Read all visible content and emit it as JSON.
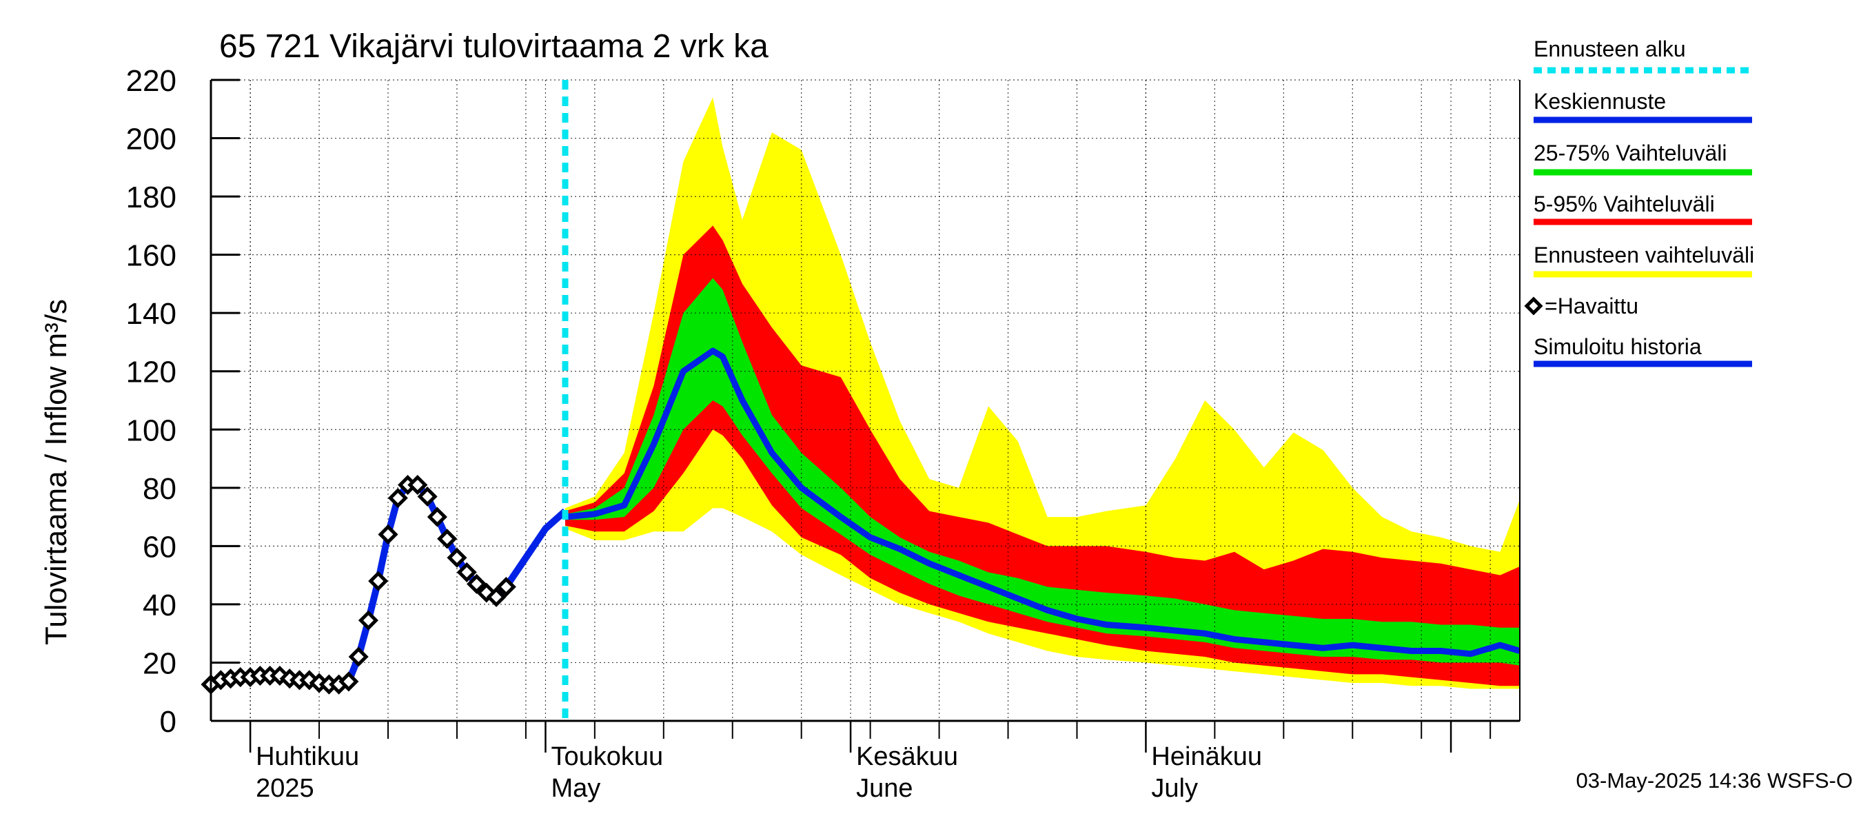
{
  "chart_data": {
    "type": "area",
    "title": "65 721 Vikajärvi tulovirtaama 2 vrk ka",
    "ylabel": "Tulovirtaama / Inflow    m³/s",
    "ylim": [
      0,
      220
    ],
    "yticks": [
      0,
      20,
      40,
      60,
      80,
      100,
      120,
      140,
      160,
      180,
      200,
      220
    ],
    "xlim": [
      "2025-03-28",
      "2025-08-08"
    ],
    "grid": true,
    "legend_position": "right",
    "x_axis_labels": [
      {
        "line1": "Huhtikuu",
        "line2": "2025",
        "date": "2025-04-01"
      },
      {
        "line1": "Toukokuu",
        "line2": "May",
        "date": "2025-05-01"
      },
      {
        "line1": "Kesäkuu",
        "line2": "June",
        "date": "2025-06-01"
      },
      {
        "line1": "Heinäkuu",
        "line2": "July",
        "date": "2025-07-01"
      }
    ],
    "forecast_start": "2025-05-03",
    "legend": [
      {
        "label": "Ennusteen alku",
        "color": "#00e5f0",
        "style": "dotted"
      },
      {
        "label": "Keskiennuste",
        "color": "#0022e6",
        "style": "line"
      },
      {
        "label": "25-75% Vaihteluväli",
        "color": "#00e400",
        "style": "line"
      },
      {
        "label": "5-95% Vaihteluväli",
        "color": "#ff0000",
        "style": "line"
      },
      {
        "label": "Ennusteen vaihteluväli",
        "color": "#ffff00",
        "style": "line"
      },
      {
        "label": "=Havaittu",
        "color": "#000000",
        "style": "diamond"
      },
      {
        "label": "Simuloitu historia",
        "color": "#0022e6",
        "style": "line"
      }
    ],
    "timestamp": "03-May-2025 14:36 WSFS-O",
    "observed": [
      [
        "2025-03-28",
        12.5
      ],
      [
        "2025-03-29",
        14
      ],
      [
        "2025-03-30",
        14.5
      ],
      [
        "2025-03-31",
        15
      ],
      [
        "2025-04-01",
        15
      ],
      [
        "2025-04-02",
        15.5
      ],
      [
        "2025-04-03",
        15.5
      ],
      [
        "2025-04-04",
        15.5
      ],
      [
        "2025-04-05",
        14.5
      ],
      [
        "2025-04-06",
        14
      ],
      [
        "2025-04-07",
        14
      ],
      [
        "2025-04-08",
        13
      ],
      [
        "2025-04-09",
        12.5
      ],
      [
        "2025-04-10",
        12.5
      ],
      [
        "2025-04-11",
        13.5
      ],
      [
        "2025-04-12",
        22
      ],
      [
        "2025-04-13",
        34.5
      ],
      [
        "2025-04-14",
        48
      ],
      [
        "2025-04-15",
        64
      ],
      [
        "2025-04-16",
        76.5
      ],
      [
        "2025-04-17",
        81
      ],
      [
        "2025-04-18",
        81
      ],
      [
        "2025-04-19",
        77
      ],
      [
        "2025-04-20",
        70
      ],
      [
        "2025-04-21",
        62.5
      ],
      [
        "2025-04-22",
        56
      ],
      [
        "2025-04-23",
        51
      ],
      [
        "2025-04-24",
        47
      ],
      [
        "2025-04-25",
        44
      ],
      [
        "2025-04-26",
        42.5
      ],
      [
        "2025-04-27",
        46
      ]
    ],
    "simulated_history": [
      [
        "2025-03-28",
        12.5
      ],
      [
        "2025-03-29",
        14
      ],
      [
        "2025-03-30",
        14.5
      ],
      [
        "2025-03-31",
        15
      ],
      [
        "2025-04-01",
        15
      ],
      [
        "2025-04-02",
        15.5
      ],
      [
        "2025-04-03",
        15.5
      ],
      [
        "2025-04-04",
        15.5
      ],
      [
        "2025-04-05",
        14.5
      ],
      [
        "2025-04-06",
        14
      ],
      [
        "2025-04-07",
        14
      ],
      [
        "2025-04-08",
        13
      ],
      [
        "2025-04-09",
        12.5
      ],
      [
        "2025-04-10",
        12.5
      ],
      [
        "2025-04-11",
        13.5
      ],
      [
        "2025-04-12",
        22
      ],
      [
        "2025-04-13",
        34.5
      ],
      [
        "2025-04-14",
        48
      ],
      [
        "2025-04-15",
        64
      ],
      [
        "2025-04-16",
        76.5
      ],
      [
        "2025-04-17",
        81
      ],
      [
        "2025-04-18",
        81
      ],
      [
        "2025-04-19",
        77
      ],
      [
        "2025-04-20",
        70
      ],
      [
        "2025-04-21",
        62.5
      ],
      [
        "2025-04-22",
        56
      ],
      [
        "2025-04-23",
        51
      ],
      [
        "2025-04-24",
        47
      ],
      [
        "2025-04-25",
        44
      ],
      [
        "2025-04-26",
        42.5
      ],
      [
        "2025-04-27",
        46
      ],
      [
        "2025-04-29",
        56
      ],
      [
        "2025-05-01",
        66
      ],
      [
        "2025-05-03",
        72
      ]
    ],
    "forecast": {
      "dates": [
        "2025-05-03",
        "2025-05-06",
        "2025-05-09",
        "2025-05-12",
        "2025-05-15",
        "2025-05-18",
        "2025-05-19",
        "2025-05-21",
        "2025-05-24",
        "2025-05-27",
        "2025-05-31",
        "2025-06-03",
        "2025-06-06",
        "2025-06-09",
        "2025-06-12",
        "2025-06-15",
        "2025-06-18",
        "2025-06-21",
        "2025-06-24",
        "2025-06-27",
        "2025-07-01",
        "2025-07-04",
        "2025-07-07",
        "2025-07-10",
        "2025-07-13",
        "2025-07-16",
        "2025-07-19",
        "2025-07-22",
        "2025-07-25",
        "2025-07-28",
        "2025-07-31",
        "2025-08-03",
        "2025-08-06",
        "2025-08-08"
      ],
      "yellow_max": [
        73,
        77,
        92,
        140,
        192,
        214,
        197,
        172,
        202,
        196,
        160,
        130,
        103,
        83,
        80,
        108,
        96,
        70,
        70,
        72,
        74,
        90,
        110,
        100,
        87,
        99,
        93,
        80,
        70,
        65,
        63,
        60,
        58,
        76
      ],
      "red_max": [
        72,
        75,
        85,
        115,
        160,
        170,
        165,
        150,
        135,
        122,
        118,
        100,
        83,
        72,
        70,
        68,
        64,
        60,
        60,
        60,
        58,
        56,
        55,
        58,
        52,
        55,
        59,
        58,
        56,
        55,
        54,
        52,
        50,
        53
      ],
      "green_max": [
        71,
        73,
        80,
        105,
        140,
        152,
        148,
        130,
        105,
        92,
        80,
        70,
        63,
        58,
        55,
        51,
        49,
        46,
        45,
        44,
        43,
        42,
        40,
        38,
        37,
        36,
        35,
        35,
        34,
        34,
        33,
        33,
        32,
        32
      ],
      "median": [
        70,
        71,
        74,
        95,
        120,
        127,
        125,
        110,
        92,
        80,
        70,
        63,
        59,
        54,
        50,
        46,
        42,
        38,
        35,
        33,
        32,
        31,
        30,
        28,
        27,
        26,
        25,
        26,
        25,
        24,
        24,
        23,
        26,
        24
      ],
      "green_min": [
        69,
        69,
        70,
        80,
        100,
        110,
        108,
        98,
        85,
        73,
        64,
        57,
        52,
        47,
        43,
        40,
        37,
        34,
        32,
        30,
        29,
        28,
        27,
        25,
        24,
        23,
        22,
        22,
        21,
        21,
        20,
        20,
        20,
        19
      ],
      "red_min": [
        67,
        65,
        65,
        72,
        85,
        100,
        98,
        90,
        74,
        63,
        57,
        49,
        44,
        40,
        37,
        34,
        32,
        30,
        28,
        26,
        24,
        23,
        22,
        20,
        19,
        18,
        17,
        16,
        16,
        15,
        14,
        13,
        12,
        12
      ],
      "yellow_min": [
        66,
        62,
        62,
        65,
        65,
        73,
        73,
        70,
        65,
        57,
        50,
        45,
        40,
        37,
        34,
        30,
        27,
        24,
        22,
        21,
        20,
        19,
        18,
        17,
        16,
        15,
        14,
        13,
        13,
        12,
        12,
        11,
        11,
        11
      ]
    }
  }
}
